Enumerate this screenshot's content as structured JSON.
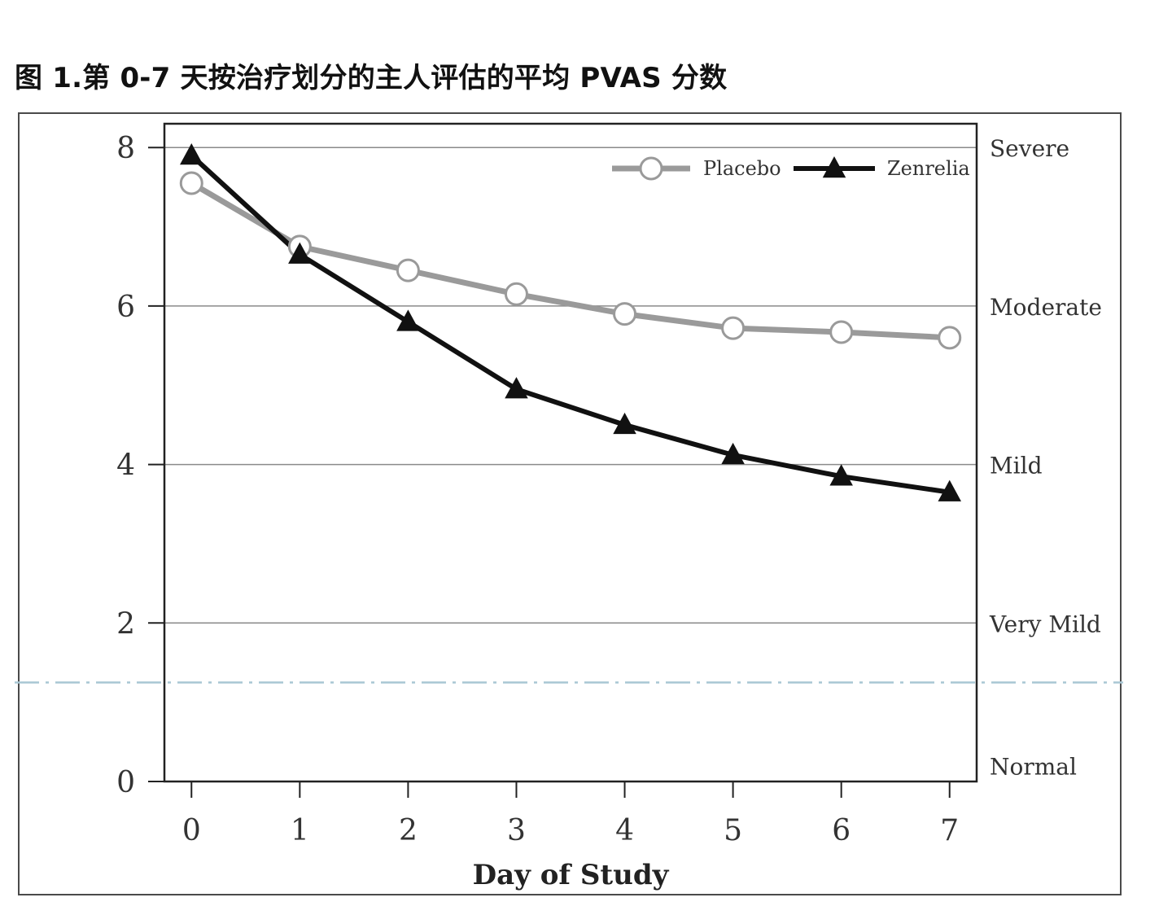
{
  "figure": {
    "title": "图 1.第 0-7 天按治疗划分的主人评估的平均 PVAS 分数"
  },
  "chart_data": {
    "type": "line",
    "title": "图 1.第 0-7 天按治疗划分的主人评估的平均 PVAS 分数",
    "xlabel": "Day of Study",
    "ylabel": "",
    "x": [
      0,
      1,
      2,
      3,
      4,
      5,
      6,
      7
    ],
    "xticks": [
      "0",
      "1",
      "2",
      "3",
      "4",
      "5",
      "6",
      "7"
    ],
    "yticks": [
      "0",
      "2",
      "4",
      "6",
      "8"
    ],
    "ytick_values": [
      0,
      2,
      4,
      6,
      8
    ],
    "xlim": [
      -0.25,
      7.25
    ],
    "ylim": [
      0,
      8.3
    ],
    "grid_y_values": [
      2,
      4,
      6,
      8
    ],
    "severity_labels": [
      {
        "label": "Severe",
        "y": 8
      },
      {
        "label": "Moderate",
        "y": 6
      },
      {
        "label": "Mild",
        "y": 4
      },
      {
        "label": "Very Mild",
        "y": 2
      },
      {
        "label": "Normal",
        "y": 0.2
      }
    ],
    "reference_line_y": 1.25,
    "legend_position": "top-right",
    "series": [
      {
        "name": "Placebo",
        "values": [
          7.55,
          6.75,
          6.45,
          6.15,
          5.9,
          5.72,
          5.67,
          5.6
        ],
        "color": "#9a9a9a",
        "marker": "circle"
      },
      {
        "name": "Zenrelia",
        "values": [
          7.9,
          6.65,
          5.8,
          4.95,
          4.5,
          4.12,
          3.85,
          3.65
        ],
        "color": "#111111",
        "marker": "triangle"
      }
    ]
  },
  "colors": {
    "gridline": "#8a8a8a",
    "axis": "#222222",
    "reference_line": "#a9c7d4",
    "text": "#333333"
  }
}
